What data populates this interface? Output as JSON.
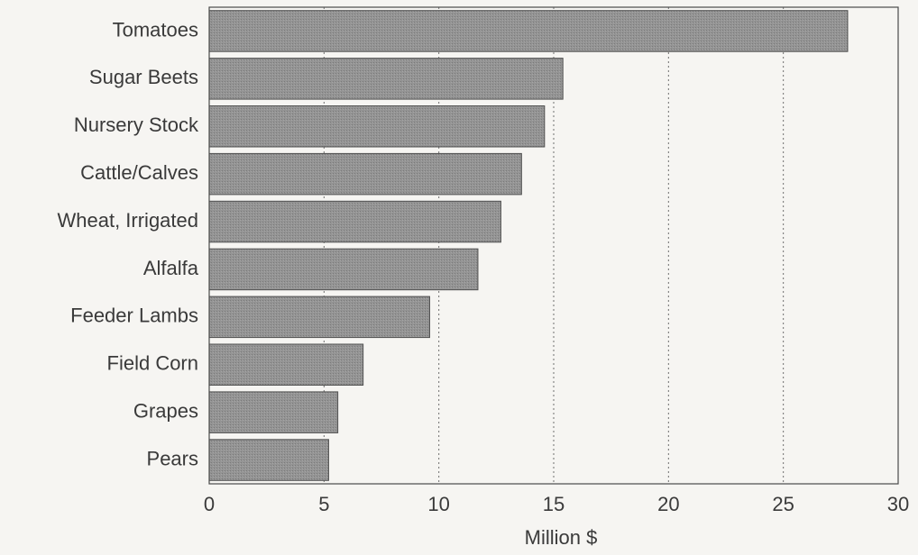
{
  "chart_data": {
    "type": "bar",
    "orientation": "horizontal",
    "title": "",
    "xlabel": "Million $",
    "ylabel": "",
    "categories": [
      "Tomatoes",
      "Sugar Beets",
      "Nursery Stock",
      "Cattle/Calves",
      "Wheat, Irrigated",
      "Alfalfa",
      "Feeder Lambs",
      "Field Corn",
      "Grapes",
      "Pears"
    ],
    "values": [
      27.8,
      15.4,
      14.6,
      13.6,
      12.7,
      11.7,
      9.6,
      6.7,
      5.6,
      5.2
    ],
    "xlim": [
      0,
      30
    ],
    "xticks": [
      "0",
      "5",
      "10",
      "15",
      "20",
      "25",
      "30"
    ],
    "grid": "vertical dotted",
    "legend": "none",
    "colors": {
      "bar": "#8f8f8f",
      "bar_edge": "#4f4f4f",
      "grid": "#6f6f6f",
      "frame": "#4a4a4a",
      "text": "#3a3a3a",
      "background": "#f6f5f2"
    }
  }
}
